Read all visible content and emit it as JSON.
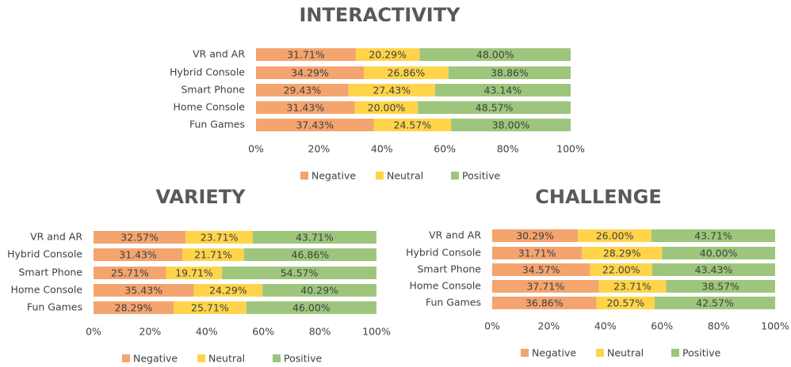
{
  "chart_data": [
    {
      "type": "bar",
      "orientation": "horizontal",
      "stacked": true,
      "title": "INTERACTIVITY",
      "categories": [
        "VR and AR",
        "Hybrid Console",
        "Smart Phone",
        "Home Console",
        "Fun Games"
      ],
      "series": [
        {
          "name": "Negative",
          "color": "#f4a46e",
          "values": [
            31.71,
            34.29,
            29.43,
            31.43,
            37.43
          ],
          "value_labels": [
            "31.71%",
            "34.29%",
            "29.43%",
            "31.43%",
            "37.43%"
          ]
        },
        {
          "name": "Neutral",
          "color": "#ffd44a",
          "values": [
            20.29,
            26.86,
            27.43,
            20.0,
            24.57
          ],
          "value_labels": [
            "20.29%",
            "26.86%",
            "27.43%",
            "20.00%",
            "24.57%"
          ]
        },
        {
          "name": "Positive",
          "color": "#9dc67c",
          "values": [
            48.0,
            38.86,
            43.14,
            48.57,
            38.0
          ],
          "value_labels": [
            "48.00%",
            "38.86%",
            "43.14%",
            "48.57%",
            "38.00%"
          ]
        }
      ],
      "xlim": [
        0,
        100
      ],
      "xticks": [
        {
          "value": 0,
          "label": "0%"
        },
        {
          "value": 20,
          "label": "20%"
        },
        {
          "value": 40,
          "label": "40%"
        },
        {
          "value": 60,
          "label": "60%"
        },
        {
          "value": 80,
          "label": "80%"
        },
        {
          "value": 100,
          "label": "100%"
        }
      ],
      "legend": "bottom"
    },
    {
      "type": "bar",
      "orientation": "horizontal",
      "stacked": true,
      "title": "VARIETY",
      "categories": [
        "VR and AR",
        "Hybrid Console",
        "Smart Phone",
        "Home Console",
        "Fun Games"
      ],
      "series": [
        {
          "name": "Negative",
          "color": "#f4a46e",
          "values": [
            32.57,
            31.43,
            25.71,
            35.43,
            28.29
          ],
          "value_labels": [
            "32.57%",
            "31.43%",
            "25.71%",
            "35.43%",
            "28.29%"
          ]
        },
        {
          "name": "Neutral",
          "color": "#ffd44a",
          "values": [
            23.71,
            21.71,
            19.71,
            24.29,
            25.71
          ],
          "value_labels": [
            "23.71%",
            "21.71%",
            "19.71%",
            "24.29%",
            "25.71%"
          ]
        },
        {
          "name": "Positive",
          "color": "#9dc67c",
          "values": [
            43.71,
            46.86,
            54.57,
            40.29,
            46.0
          ],
          "value_labels": [
            "43.71%",
            "46.86%",
            "54.57%",
            "40.29%",
            "46.00%"
          ]
        }
      ],
      "xlim": [
        0,
        100
      ],
      "xticks": [
        {
          "value": 0,
          "label": "0%"
        },
        {
          "value": 20,
          "label": "20%"
        },
        {
          "value": 40,
          "label": "40%"
        },
        {
          "value": 60,
          "label": "60%"
        },
        {
          "value": 80,
          "label": "80%"
        },
        {
          "value": 100,
          "label": "100%"
        }
      ],
      "legend": "bottom"
    },
    {
      "type": "bar",
      "orientation": "horizontal",
      "stacked": true,
      "title": "CHALLENGE",
      "categories": [
        "VR and AR",
        "Hybrid Console",
        "Smart Phone",
        "Home Console",
        "Fun Games"
      ],
      "series": [
        {
          "name": "Negative",
          "color": "#f4a46e",
          "values": [
            30.29,
            31.71,
            34.57,
            37.71,
            36.86
          ],
          "value_labels": [
            "30.29%",
            "31.71%",
            "34.57%",
            "37.71%",
            "36.86%"
          ]
        },
        {
          "name": "Neutral",
          "color": "#ffd44a",
          "values": [
            26.0,
            28.29,
            22.0,
            23.71,
            20.57
          ],
          "value_labels": [
            "26.00%",
            "28.29%",
            "22.00%",
            "23.71%",
            "20.57%"
          ]
        },
        {
          "name": "Positive",
          "color": "#9dc67c",
          "values": [
            43.71,
            40.0,
            43.43,
            38.57,
            42.57
          ],
          "value_labels": [
            "43.71%",
            "40.00%",
            "43.43%",
            "38.57%",
            "42.57%"
          ]
        }
      ],
      "xlim": [
        0,
        100
      ],
      "xticks": [
        {
          "value": 0,
          "label": "0%"
        },
        {
          "value": 20,
          "label": "20%"
        },
        {
          "value": 40,
          "label": "40%"
        },
        {
          "value": 60,
          "label": "60%"
        },
        {
          "value": 80,
          "label": "80%"
        },
        {
          "value": 100,
          "label": "100%"
        }
      ],
      "legend": "bottom"
    }
  ]
}
